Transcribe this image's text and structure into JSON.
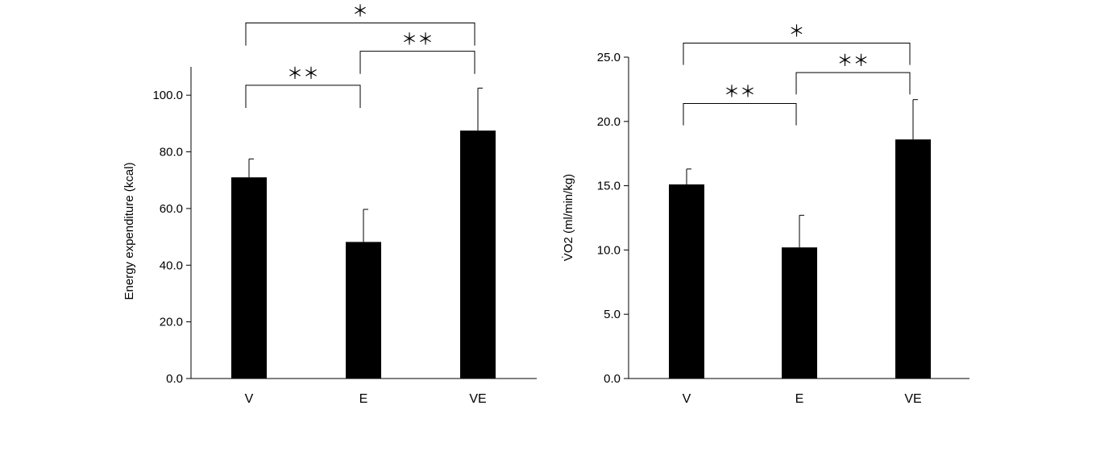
{
  "chart_data": [
    {
      "type": "bar",
      "categories": [
        "V",
        "E",
        "VE"
      ],
      "values": [
        71.0,
        48.2,
        87.5
      ],
      "errors": [
        6.5,
        11.5,
        15.0
      ],
      "ylabel": "Energy expenditure (kcal)",
      "ylim": [
        0,
        110
      ],
      "yticks": [
        0,
        20,
        40,
        60,
        80,
        100
      ],
      "ytick_labels": [
        "0.0",
        "20.0",
        "40.0",
        "60.0",
        "80.0",
        "100.0"
      ],
      "bar_color": "#000000",
      "grid": false,
      "significance": [
        {
          "from": "V",
          "to": "E",
          "label": "＊＊",
          "y": 103.5,
          "drop": 8.0
        },
        {
          "from": "E",
          "to": "VE",
          "label": "＊＊",
          "y": 115.5,
          "drop": 8.0
        },
        {
          "from": "V",
          "to": "VE",
          "label": "＊",
          "y": 125.5,
          "drop": 8.0
        }
      ]
    },
    {
      "type": "bar",
      "categories": [
        "V",
        "E",
        "VE"
      ],
      "values": [
        15.1,
        10.2,
        18.6
      ],
      "errors": [
        1.2,
        2.5,
        3.1
      ],
      "ylabel": "V̇O2 (ml/min/kg)",
      "ylim": [
        0,
        25
      ],
      "yticks": [
        0,
        5,
        10,
        15,
        20,
        25
      ],
      "ytick_labels": [
        "0.0",
        "5.0",
        "10.0",
        "15.0",
        "20.0",
        "25.0"
      ],
      "bar_color": "#000000",
      "grid": false,
      "significance": [
        {
          "from": "V",
          "to": "E",
          "label": "＊＊",
          "y": 21.4,
          "drop": 1.7
        },
        {
          "from": "E",
          "to": "VE",
          "label": "＊＊",
          "y": 23.8,
          "drop": 1.7
        },
        {
          "from": "V",
          "to": "VE",
          "label": "＊",
          "y": 26.1,
          "drop": 1.7
        }
      ]
    }
  ]
}
